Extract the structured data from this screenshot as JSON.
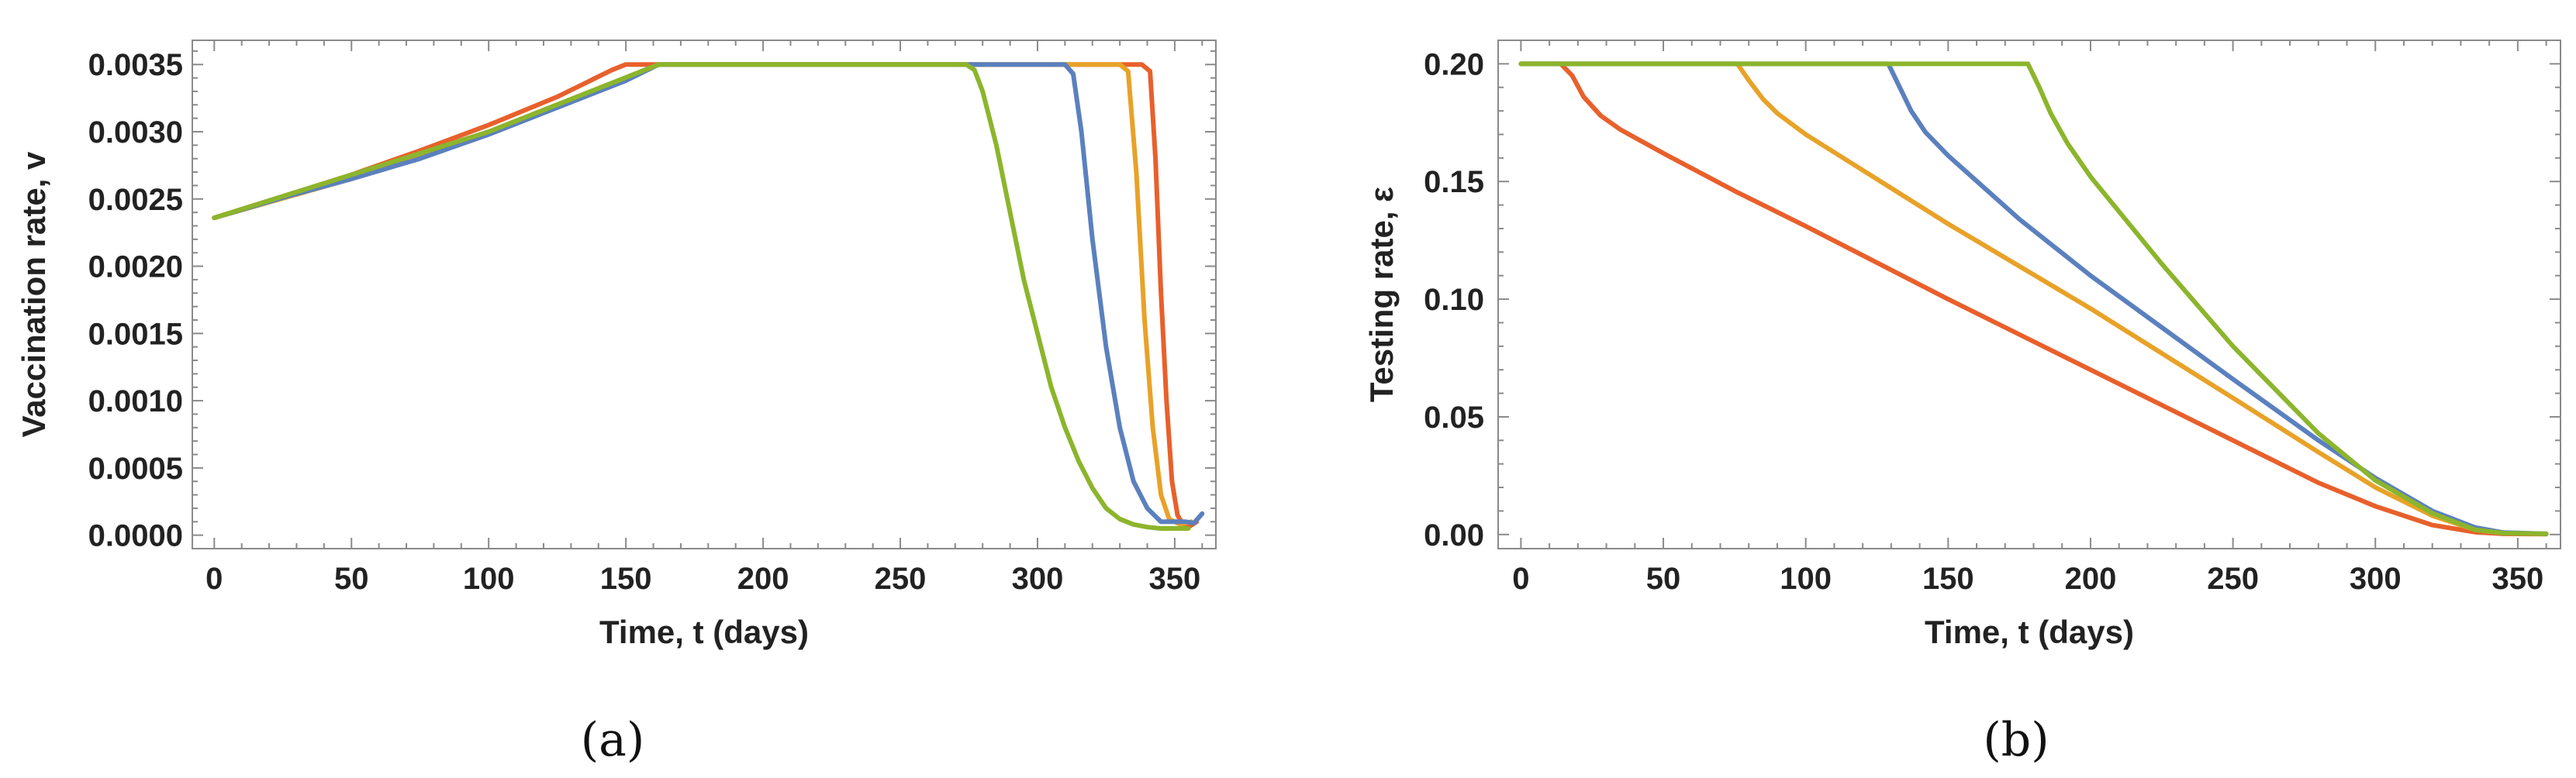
{
  "chart_data": [
    {
      "type": "line",
      "panel": "a",
      "caption": "(a)",
      "xlabel": "Time, t (days)",
      "ylabel": "Vaccination rate, v",
      "xlim": [
        -8,
        365
      ],
      "ylim": [
        -0.0001,
        0.00368
      ],
      "xticks": [
        0,
        50,
        100,
        150,
        200,
        250,
        300,
        350
      ],
      "xtick_labels": [
        "0",
        "50",
        "100",
        "150",
        "200",
        "250",
        "300",
        "350"
      ],
      "yticks": [
        0,
        0.0005,
        0.001,
        0.0015,
        0.002,
        0.0025,
        0.003,
        0.0035
      ],
      "ytick_labels": [
        "0.0000",
        "0.0005",
        "0.0010",
        "0.0015",
        "0.0020",
        "0.0025",
        "0.0030",
        "0.0035"
      ],
      "grid": false,
      "legend": "none",
      "series": [
        {
          "name": "orange",
          "color": "#e8602c",
          "x": [
            0,
            25,
            50,
            75,
            100,
            125,
            145,
            150,
            200,
            250,
            300,
            338,
            341,
            343,
            345,
            347,
            349,
            351,
            353,
            355,
            358
          ],
          "y": [
            0.00236,
            0.00252,
            0.00268,
            0.00286,
            0.00305,
            0.00326,
            0.00346,
            0.0035,
            0.0035,
            0.0035,
            0.0035,
            0.0035,
            0.00345,
            0.0028,
            0.0018,
            0.001,
            0.0004,
            0.00015,
            8e-05,
            6e-05,
            0.0001
          ]
        },
        {
          "name": "yellow",
          "color": "#e8a228",
          "x": [
            0,
            50,
            100,
            162,
            200,
            250,
            300,
            330,
            333,
            336,
            339,
            342,
            345,
            348,
            352,
            356
          ],
          "y": [
            0.00236,
            0.00265,
            0.003,
            0.0035,
            0.0035,
            0.0035,
            0.0035,
            0.0035,
            0.00345,
            0.0027,
            0.0016,
            0.0008,
            0.0003,
            0.00012,
            8e-05,
            0.0001
          ]
        },
        {
          "name": "blue",
          "color": "#5b80be",
          "x": [
            0,
            25,
            50,
            75,
            100,
            125,
            150,
            162,
            200,
            250,
            300,
            310,
            313,
            316,
            320,
            325,
            330,
            335,
            340,
            345,
            350,
            354,
            357,
            360
          ],
          "y": [
            0.00236,
            0.00251,
            0.00265,
            0.0028,
            0.00298,
            0.00318,
            0.00338,
            0.0035,
            0.0035,
            0.0035,
            0.0035,
            0.0035,
            0.00343,
            0.003,
            0.0022,
            0.0014,
            0.0008,
            0.0004,
            0.0002,
            0.0001,
            0.0001,
            0.0001,
            9e-05,
            0.00016
          ]
        },
        {
          "name": "green",
          "color": "#8cb52c",
          "x": [
            0,
            100,
            162,
            200,
            250,
            274,
            277,
            280,
            285,
            290,
            295,
            300,
            305,
            310,
            315,
            320,
            325,
            330,
            335,
            340,
            345,
            350,
            355
          ],
          "y": [
            0.00236,
            0.003,
            0.0035,
            0.0035,
            0.0035,
            0.0035,
            0.00346,
            0.0033,
            0.0029,
            0.0024,
            0.0019,
            0.0015,
            0.0011,
            0.0008,
            0.00055,
            0.00035,
            0.0002,
            0.00012,
            8e-05,
            6e-05,
            5e-05,
            5e-05,
            5e-05
          ]
        }
      ]
    },
    {
      "type": "line",
      "panel": "b",
      "caption": "(b)",
      "xlabel": "Time, t (days)",
      "ylabel": "Testing rate, ε",
      "xlim": [
        -8,
        365
      ],
      "ylim": [
        -0.006,
        0.21
      ],
      "xticks": [
        0,
        50,
        100,
        150,
        200,
        250,
        300,
        350
      ],
      "xtick_labels": [
        "0",
        "50",
        "100",
        "150",
        "200",
        "250",
        "300",
        "350"
      ],
      "yticks": [
        0,
        0.05,
        0.1,
        0.15,
        0.2
      ],
      "ytick_labels": [
        "0.00",
        "0.05",
        "0.10",
        "0.15",
        "0.20"
      ],
      "grid": false,
      "legend": "none",
      "series": [
        {
          "name": "orange",
          "color": "#e8602c",
          "x": [
            0,
            14,
            18,
            22,
            28,
            35,
            50,
            75,
            100,
            150,
            200,
            250,
            280,
            300,
            320,
            335,
            345,
            360
          ],
          "y": [
            0.2,
            0.2,
            0.195,
            0.186,
            0.178,
            0.172,
            0.162,
            0.146,
            0.131,
            0.1,
            0.07,
            0.04,
            0.022,
            0.012,
            0.004,
            0.001,
            0.0003,
            0.0002
          ]
        },
        {
          "name": "yellow",
          "color": "#e8a228",
          "x": [
            0,
            76,
            80,
            85,
            90,
            100,
            125,
            150,
            200,
            250,
            280,
            300,
            320,
            335,
            345,
            360
          ],
          "y": [
            0.2,
            0.2,
            0.193,
            0.185,
            0.179,
            0.17,
            0.151,
            0.132,
            0.096,
            0.058,
            0.035,
            0.02,
            0.008,
            0.002,
            0.0006,
            0.0003
          ]
        },
        {
          "name": "blue",
          "color": "#5b80be",
          "x": [
            0,
            129,
            133,
            137,
            142,
            150,
            175,
            200,
            250,
            280,
            300,
            320,
            335,
            345,
            360
          ],
          "y": [
            0.2,
            0.2,
            0.19,
            0.18,
            0.171,
            0.161,
            0.134,
            0.11,
            0.066,
            0.04,
            0.024,
            0.01,
            0.003,
            0.0008,
            0.0003
          ]
        },
        {
          "name": "green",
          "color": "#8cb52c",
          "x": [
            0,
            178,
            182,
            186,
            192,
            200,
            225,
            250,
            280,
            300,
            320,
            335,
            345,
            360
          ],
          "y": [
            0.2,
            0.2,
            0.19,
            0.179,
            0.166,
            0.152,
            0.115,
            0.08,
            0.043,
            0.023,
            0.009,
            0.002,
            0.0006,
            0.0003
          ]
        }
      ]
    }
  ]
}
